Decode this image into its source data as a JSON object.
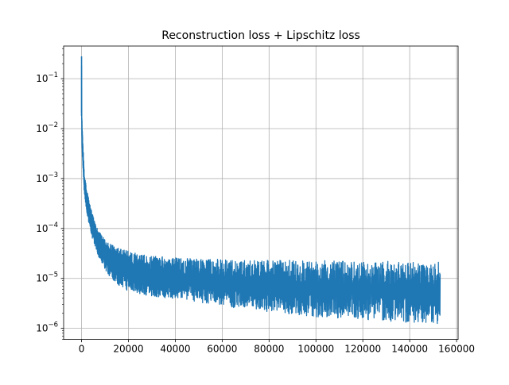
{
  "chart_data": {
    "type": "line",
    "title": "Reconstruction loss + Lipschitz loss",
    "xlabel": "",
    "ylabel": "",
    "xlim": [
      -7650,
      160650
    ],
    "ylim": [
      6e-07,
      0.45
    ],
    "yscale": "log",
    "grid": true,
    "x_ticks": [
      0,
      20000,
      40000,
      60000,
      80000,
      100000,
      120000,
      140000,
      160000
    ],
    "x_tick_labels": [
      "0",
      "20000",
      "40000",
      "60000",
      "80000",
      "100000",
      "120000",
      "140000",
      "160000"
    ],
    "y_ticks": [
      1e-06,
      1e-05,
      0.0001,
      0.001,
      0.01,
      0.1
    ],
    "y_tick_labels": [
      {
        "base": "10",
        "exp": "−6"
      },
      {
        "base": "10",
        "exp": "−5"
      },
      {
        "base": "10",
        "exp": "−4"
      },
      {
        "base": "10",
        "exp": "−3"
      },
      {
        "base": "10",
        "exp": "−2"
      },
      {
        "base": "10",
        "exp": "−1"
      }
    ],
    "series": [
      {
        "color": "#1f77b4",
        "x": [
          0,
          100,
          300,
          700,
          1200,
          2000,
          3000,
          4000,
          5000,
          6000,
          7000,
          8000,
          10000,
          12000,
          14000,
          16000,
          18000,
          20000,
          25000,
          30000,
          40000,
          50000,
          60000,
          70000,
          80000,
          90000,
          100000,
          110000,
          120000,
          130000,
          140000,
          150000,
          153000
        ],
        "upper": [
          0.28,
          0.02,
          0.012,
          0.004,
          0.0012,
          0.0007,
          0.0004,
          0.00025,
          0.00017,
          0.00012,
          0.0001,
          8e-05,
          6e-05,
          5e-05,
          4.5e-05,
          4e-05,
          3.7e-05,
          3.5e-05,
          3e-05,
          2.8e-05,
          2.6e-05,
          2.5e-05,
          2.4e-05,
          2.4e-05,
          2.3e-05,
          2.3e-05,
          2.3e-05,
          2.2e-05,
          2.2e-05,
          2.2e-05,
          2.1e-05,
          2.1e-05,
          2.1e-05
        ],
        "lower": [
          0.018,
          0.006,
          0.003,
          0.0012,
          0.0005,
          0.00025,
          0.00013,
          8e-05,
          5.5e-05,
          4e-05,
          3e-05,
          2.2e-05,
          1.5e-05,
          1.1e-05,
          8.8e-06,
          7.2e-06,
          6.2e-06,
          5.5e-06,
          4.8e-06,
          4.4e-06,
          3.9e-06,
          3.3e-06,
          2.8e-06,
          2.4e-06,
          2.1e-06,
          1.9e-06,
          1.7e-06,
          1.6e-06,
          1.5e-06,
          1.4e-06,
          1.3e-06,
          1.3e-06,
          1.2e-06
        ]
      }
    ]
  }
}
